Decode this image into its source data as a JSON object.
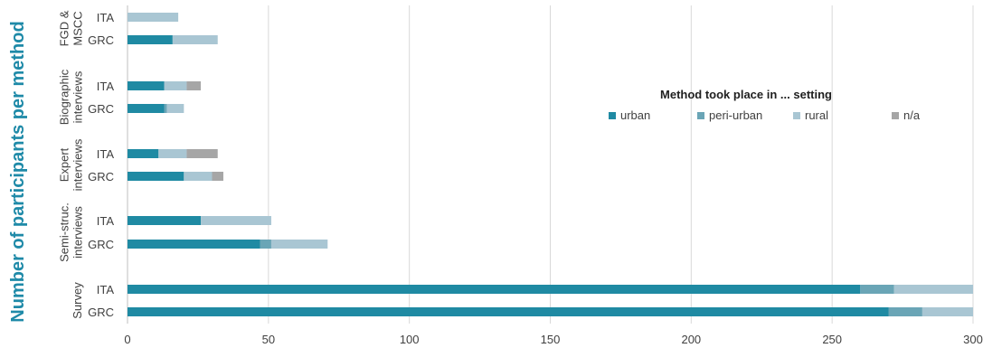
{
  "chart_data": {
    "type": "bar",
    "orientation": "horizontal",
    "stacked": true,
    "title": "",
    "xlabel": "",
    "ylabel": "Number of participants per method",
    "xlim": [
      0,
      300
    ],
    "x_ticks": [
      0,
      50,
      100,
      150,
      200,
      250,
      300
    ],
    "grid": "vertical",
    "legend": {
      "title": "Method took place in ... setting",
      "placement": "right",
      "entries": [
        "urban",
        "peri-urban",
        "rural",
        "n/a"
      ]
    },
    "groups": [
      {
        "name": "FGD & MSCC",
        "lines": [
          "FGD &",
          "MSCC"
        ]
      },
      {
        "name": "Biographic interviews",
        "lines": [
          "Biographic",
          "interviews"
        ]
      },
      {
        "name": "Expert interviews",
        "lines": [
          "Expert",
          "interviews"
        ]
      },
      {
        "name": "Semi-struc. interviews",
        "lines": [
          "Semi-struc.",
          "interviews"
        ]
      },
      {
        "name": "Survey",
        "lines": [
          "Survey"
        ]
      }
    ],
    "categories": [
      {
        "group": 0,
        "label": "ITA"
      },
      {
        "group": 0,
        "label": "GRC"
      },
      {
        "group": 1,
        "label": "ITA"
      },
      {
        "group": 1,
        "label": "GRC"
      },
      {
        "group": 2,
        "label": "ITA"
      },
      {
        "group": 2,
        "label": "GRC"
      },
      {
        "group": 3,
        "label": "ITA"
      },
      {
        "group": 3,
        "label": "GRC"
      },
      {
        "group": 4,
        "label": "ITA"
      },
      {
        "group": 4,
        "label": "GRC"
      }
    ],
    "series": [
      {
        "name": "urban",
        "color": "#1f8aa3",
        "values": [
          0,
          16,
          13,
          13,
          11,
          20,
          26,
          47,
          260,
          270
        ]
      },
      {
        "name": "peri-urban",
        "color": "#6aa5b6",
        "values": [
          0,
          0,
          0,
          1,
          0,
          0,
          0,
          4,
          12,
          12
        ]
      },
      {
        "name": "rural",
        "color": "#a9c6d3",
        "values": [
          18,
          16,
          8,
          6,
          10,
          10,
          25,
          20,
          28,
          18
        ]
      },
      {
        "name": "n/a",
        "color": "#a6a6a6",
        "values": [
          0,
          0,
          5,
          0,
          11,
          4,
          0,
          0,
          0,
          0
        ]
      }
    ]
  }
}
